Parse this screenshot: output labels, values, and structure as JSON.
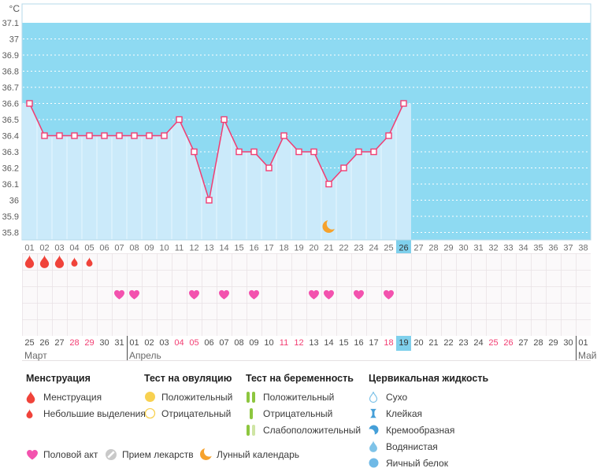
{
  "chart_data": {
    "type": "line",
    "title": "",
    "ylabel": "°C",
    "ylim": [
      35.8,
      37.2
    ],
    "y_tick_labels": [
      "37.1",
      "37",
      "36.9",
      "36.8",
      "36.7",
      "36.6",
      "36.5",
      "36.4",
      "36.3",
      "36.2",
      "36.1",
      "36",
      "35.9",
      "35.8"
    ],
    "x_tick_labels": [
      "01",
      "02",
      "03",
      "04",
      "05",
      "06",
      "07",
      "08",
      "09",
      "10",
      "11",
      "12",
      "13",
      "14",
      "15",
      "16",
      "17",
      "18",
      "19",
      "20",
      "21",
      "22",
      "23",
      "24",
      "25",
      "26",
      "27",
      "28",
      "29",
      "30",
      "31",
      "32",
      "33",
      "34",
      "35",
      "36",
      "37",
      "38"
    ],
    "values": [
      36.6,
      36.4,
      36.4,
      36.4,
      36.4,
      36.4,
      36.4,
      36.4,
      36.4,
      36.4,
      36.5,
      36.3,
      36.0,
      36.5,
      36.3,
      36.3,
      36.2,
      36.4,
      36.3,
      36.3,
      36.1,
      36.2,
      36.3,
      36.3,
      36.4,
      36.6
    ],
    "current_day": 26,
    "moon_day": 21,
    "grid": "dotted-white",
    "legend_position": "bottom",
    "colors": {
      "line": "#f23d72",
      "marker_fill": "#ffffff",
      "plot_bg": "#8edaf2",
      "area_fill": "#cbeafa",
      "highlight": "#7fd0ec",
      "gridline": "#ffffff",
      "axis_text": "#5a5a5a"
    }
  },
  "events": {
    "menstruation": [
      {
        "day": 1,
        "size": "large"
      },
      {
        "day": 2,
        "size": "large"
      },
      {
        "day": 3,
        "size": "large"
      },
      {
        "day": 4,
        "size": "small"
      },
      {
        "day": 5,
        "size": "small"
      }
    ],
    "intercourse_days": [
      7,
      8,
      12,
      14,
      16,
      20,
      21,
      23,
      25
    ]
  },
  "calendar": {
    "months": [
      {
        "name": "Март",
        "dates": [
          "25",
          "26",
          "27",
          "28",
          "29",
          "30",
          "31"
        ],
        "weekend_dates": [
          "28",
          "29"
        ],
        "highlighted_date": ""
      },
      {
        "name": "Апрель",
        "dates": [
          "01",
          "02",
          "03",
          "04",
          "05",
          "06",
          "07",
          "08",
          "09",
          "10",
          "11",
          "12",
          "13",
          "14",
          "15",
          "16",
          "17",
          "18",
          "19",
          "20",
          "21",
          "22",
          "23",
          "24",
          "25",
          "26",
          "27",
          "28",
          "29",
          "30"
        ],
        "weekend_dates": [
          "04",
          "05",
          "11",
          "12",
          "18",
          "25",
          "26"
        ],
        "highlighted_date": "19"
      },
      {
        "name": "Май",
        "dates": [
          "01"
        ],
        "weekend_dates": [],
        "highlighted_date": ""
      }
    ]
  },
  "legend": {
    "menstruation": {
      "title": "Менструация",
      "items": [
        {
          "icon": "drop-large-icon",
          "label": "Менструация"
        },
        {
          "icon": "drop-small-icon",
          "label": "Небольшие выделения"
        }
      ]
    },
    "ovulation_test": {
      "title": "Тест на овуляцию",
      "items": [
        {
          "icon": "yellow-circle-filled-icon",
          "label": "Положительный"
        },
        {
          "icon": "yellow-circle-outline-icon",
          "label": "Отрицательный"
        }
      ]
    },
    "pregnancy_test": {
      "title": "Тест на беременность",
      "items": [
        {
          "icon": "two-green-bars-icon",
          "label": "Положительный"
        },
        {
          "icon": "one-green-bar-icon",
          "label": "Отрицательный"
        },
        {
          "icon": "green-lightgreen-bars-icon",
          "label": "Слабоположительный"
        }
      ]
    },
    "cervical_fluid": {
      "title": "Цервикальная жидкость",
      "items": [
        {
          "icon": "droplet-outline-icon",
          "label": "Сухо"
        },
        {
          "icon": "sticky-icon",
          "label": "Клейкая"
        },
        {
          "icon": "creamy-icon",
          "label": "Кремообразная"
        },
        {
          "icon": "droplet-filled-icon",
          "label": "Водянистая"
        },
        {
          "icon": "blue-circle-icon",
          "label": "Яичный белок"
        }
      ]
    },
    "extras": [
      {
        "icon": "heart-icon",
        "label": "Половой акт"
      },
      {
        "icon": "pill-icon",
        "label": "Прием лекарств"
      },
      {
        "icon": "moon-icon",
        "label": "Лунный календарь"
      }
    ],
    "icon_colors": {
      "drop_red": "#f0433a",
      "heart_pink": "#f352ae",
      "yellow": "#f8d150",
      "green": "#8dc63f",
      "light_green": "#cfe5a4",
      "blue_dark": "#459fd8",
      "blue_light": "#7fc3e8",
      "gray": "#c9c9c9",
      "orange": "#f6a22d"
    }
  }
}
